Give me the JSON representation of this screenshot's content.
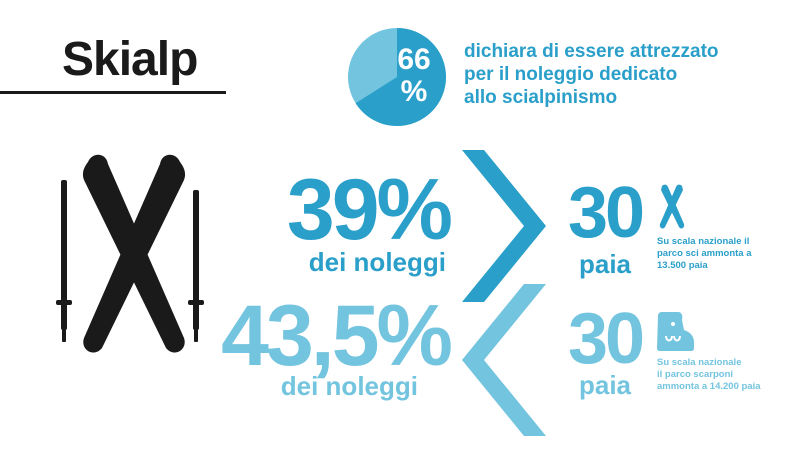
{
  "title": "Skialp",
  "pie": {
    "percent_value": 66,
    "percent_label": "66%",
    "caption_lines": [
      "dichiara di essere attrezzato",
      "per il noleggio dedicato",
      "allo scialpinismo"
    ],
    "colors": {
      "filled": "#2a9fc9",
      "rest": "#73c4df"
    }
  },
  "stats": [
    {
      "percent": "39%",
      "subtitle": "dei noleggi",
      "count": "30",
      "unit": "paia",
      "icon": "ski-icon",
      "note_lines": [
        "Su scala nazionale il",
        "parco sci ammonta a",
        "13.500 paia"
      ],
      "color": "#2a9fc9"
    },
    {
      "percent": "43,5%",
      "subtitle": "dei noleggi",
      "count": "30",
      "unit": "paia",
      "icon": "ski-boot-icon",
      "note_lines": [
        "Su scala nazionale",
        "il parco scarponi",
        "ammonta a 14.200 paia"
      ],
      "color": "#73c4df"
    }
  ],
  "illustration": {
    "icon": "crossed-skis-with-poles-icon",
    "color": "#1a1a1a"
  }
}
